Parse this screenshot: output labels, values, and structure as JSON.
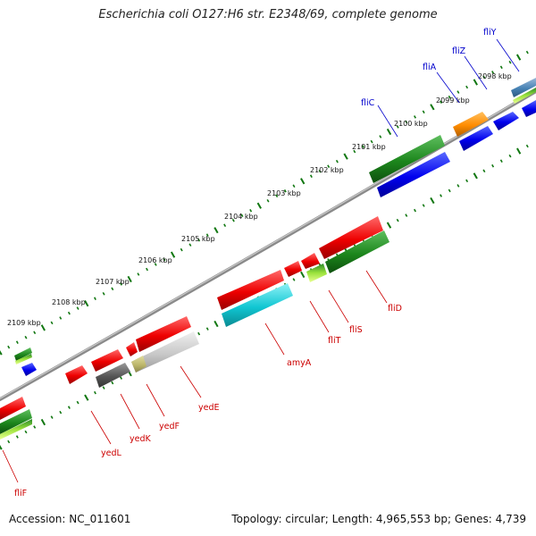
{
  "title": "Escherichia coli O127:H6 str. E2348/69, complete genome",
  "footer": {
    "accession": "Accession: NC_011601",
    "topology": "Topology: circular; Length: 4,965,553 bp; Genes: 4,739"
  },
  "ticks": [
    "2109 kbp",
    "2108 kbp",
    "2107 kbp",
    "2106 kbp",
    "2105 kbp",
    "2104 kbp",
    "2103 kbp",
    "2102 kbp",
    "2101 kbp",
    "2100 kbp",
    "2099 kbp",
    "2098 kbp"
  ],
  "genes_top_strand": [
    "fliC",
    "fliA",
    "fliZ",
    "fliY"
  ],
  "genes_bottom_strand": [
    "fliF",
    "yedL",
    "yedK",
    "yedF",
    "yedE",
    "amyA",
    "fliT",
    "fliS",
    "fliD"
  ],
  "colors": {
    "top_label": "#0000cc",
    "bottom_label": "#cc0000",
    "tick": "#117711",
    "backbone": "#8a8a8a"
  }
}
